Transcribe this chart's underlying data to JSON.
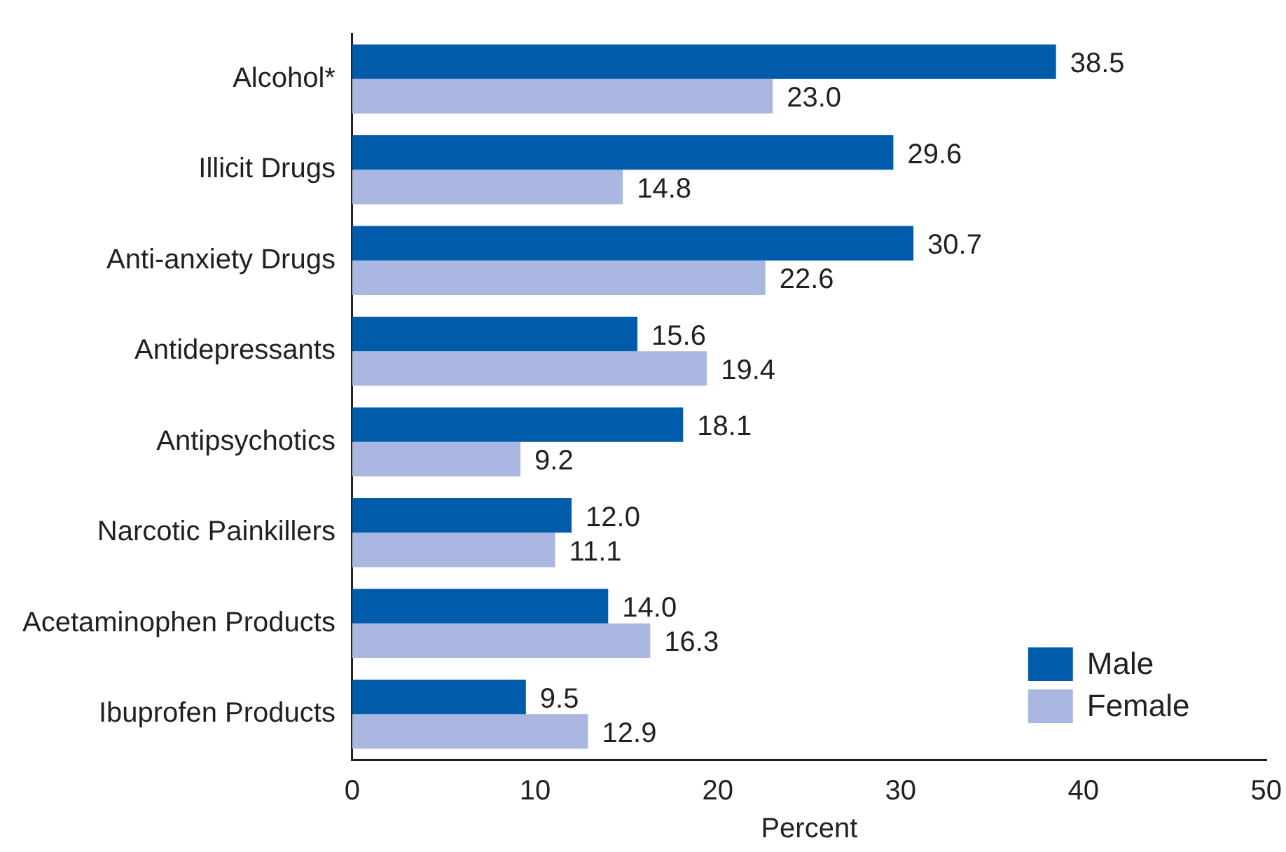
{
  "chart_data": {
    "type": "bar",
    "orientation": "horizontal",
    "xlabel": "Percent",
    "categories": [
      "Alcohol*",
      "Illicit Drugs",
      "Anti-anxiety Drugs",
      "Antidepressants",
      "Antipsychotics",
      "Narcotic Painkillers",
      "Acetaminophen Products",
      "Ibuprofen Products"
    ],
    "series": [
      {
        "name": "Male",
        "color": "#005bab",
        "values": [
          38.5,
          29.6,
          30.7,
          15.6,
          18.1,
          12.0,
          14.0,
          9.5
        ],
        "value_labels": [
          "38.5",
          "29.6",
          "30.7",
          "15.6",
          "18.1",
          "12.0",
          "14.0",
          "9.5"
        ]
      },
      {
        "name": "Female",
        "color": "#aab7e0",
        "values": [
          23.0,
          14.8,
          22.6,
          19.4,
          9.2,
          11.1,
          16.3,
          12.9
        ],
        "value_labels": [
          "23.0",
          "14.8",
          "22.6",
          "19.4",
          "9.2",
          "11.1",
          "16.3",
          "12.9"
        ]
      }
    ],
    "xlim": [
      0,
      50
    ],
    "xticks": [
      0,
      10,
      20,
      30,
      40,
      50
    ],
    "grid": false,
    "legend": "bottom right"
  }
}
